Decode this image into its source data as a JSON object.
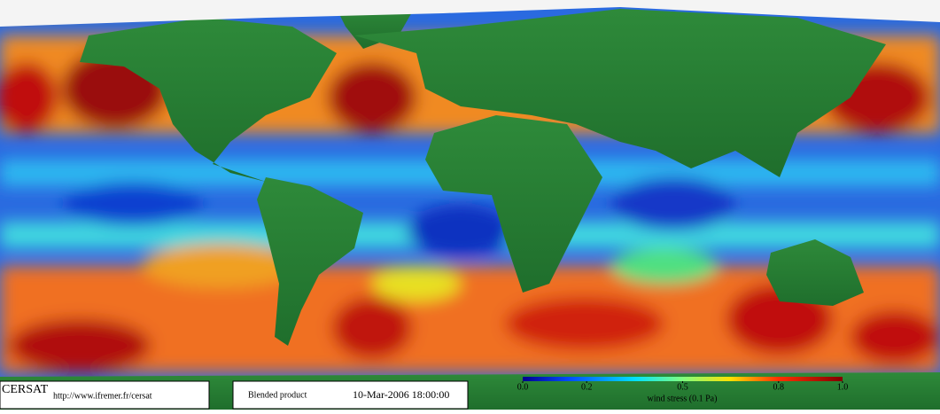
{
  "footer": {
    "logo": "CERSAT",
    "url": "http://www.ifremer.fr/cersat",
    "product": "Blended product",
    "date": "10-Mar-2006 18:00:00"
  },
  "colorbar": {
    "label": "wind stress (0.1 Pa)",
    "range": [
      0,
      1
    ],
    "ticks": [
      {
        "value": 0,
        "label": "0.0"
      },
      0.2,
      0.5,
      0.8,
      {
        "value": 1,
        "label": "1.0"
      }
    ]
  }
}
